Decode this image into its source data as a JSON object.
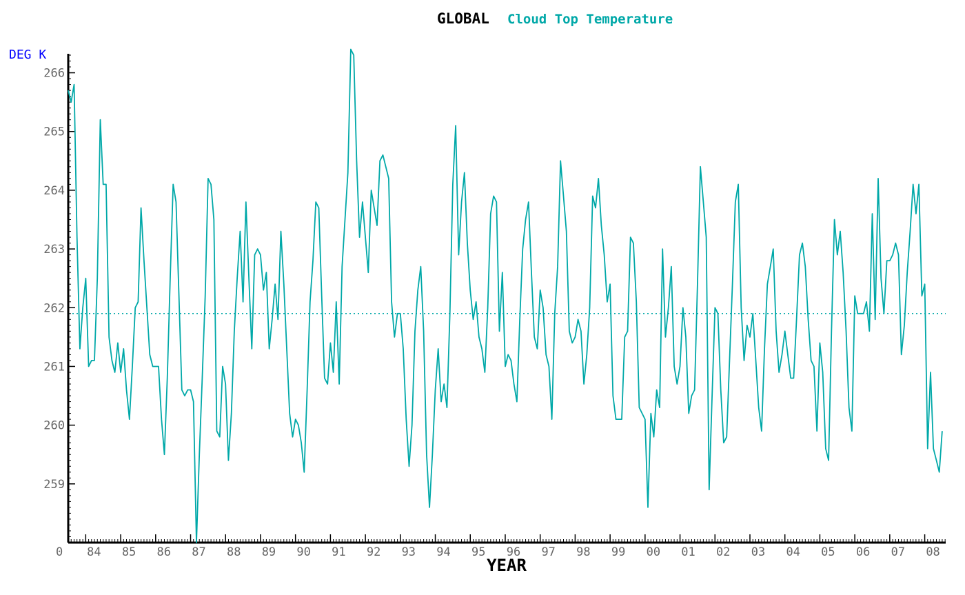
{
  "chart_data": {
    "type": "line",
    "title": "GLOBAL",
    "subtitle": "Cloud Top Temperature",
    "ylabel": "DEG K",
    "xlabel": "YEAR",
    "origin_label": "0",
    "ylim": [
      258.0,
      266.3
    ],
    "xlim": [
      1983.5,
      2008.6
    ],
    "grid": false,
    "y_ticks": [
      259,
      260,
      261,
      262,
      263,
      264,
      265,
      266
    ],
    "y_tick_labels": [
      "259",
      "260",
      "261",
      "262",
      "263",
      "264",
      "265",
      "266"
    ],
    "x_ticks": [
      1984,
      1985,
      1986,
      1987,
      1988,
      1989,
      1990,
      1991,
      1992,
      1993,
      1994,
      1995,
      1996,
      1997,
      1998,
      1999,
      2000,
      2001,
      2002,
      2003,
      2004,
      2005,
      2006,
      2007,
      2008
    ],
    "x_tick_labels": [
      "84",
      "85",
      "86",
      "87",
      "88",
      "89",
      "90",
      "91",
      "92",
      "93",
      "94",
      "95",
      "96",
      "97",
      "98",
      "99",
      "00",
      "01",
      "02",
      "03",
      "04",
      "05",
      "06",
      "07",
      "08"
    ],
    "reference_line": {
      "y": 261.9,
      "style": "dotted"
    },
    "series": [
      {
        "color": "#00a8a8",
        "x": [
          1983.5,
          1983.583,
          1983.667,
          1983.75,
          1983.833,
          1983.917,
          1984.0,
          1984.083,
          1984.167,
          1984.25,
          1984.333,
          1984.417,
          1984.5,
          1984.583,
          1984.667,
          1984.75,
          1984.833,
          1984.917,
          1985.0,
          1985.083,
          1985.167,
          1985.25,
          1985.333,
          1985.417,
          1985.5,
          1985.583,
          1985.667,
          1985.75,
          1985.833,
          1985.917,
          1986.0,
          1986.083,
          1986.167,
          1986.25,
          1986.333,
          1986.417,
          1986.5,
          1986.583,
          1986.667,
          1986.75,
          1986.833,
          1986.917,
          1987.0,
          1987.083,
          1987.167,
          1987.25,
          1987.333,
          1987.417,
          1987.5,
          1987.583,
          1987.667,
          1987.75,
          1987.833,
          1987.917,
          1988.0,
          1988.083,
          1988.167,
          1988.25,
          1988.333,
          1988.417,
          1988.5,
          1988.583,
          1988.667,
          1988.75,
          1988.833,
          1988.917,
          1989.0,
          1989.083,
          1989.167,
          1989.25,
          1989.333,
          1989.417,
          1989.5,
          1989.583,
          1989.667,
          1989.75,
          1989.833,
          1989.917,
          1990.0,
          1990.083,
          1990.167,
          1990.25,
          1990.333,
          1990.417,
          1990.5,
          1990.583,
          1990.667,
          1990.75,
          1990.833,
          1990.917,
          1991.0,
          1991.083,
          1991.167,
          1991.25,
          1991.333,
          1991.417,
          1991.5,
          1991.583,
          1991.667,
          1991.75,
          1991.833,
          1991.917,
          1992.0,
          1992.083,
          1992.167,
          1992.25,
          1992.333,
          1992.417,
          1992.5,
          1992.583,
          1992.667,
          1992.75,
          1992.833,
          1992.917,
          1993.0,
          1993.083,
          1993.167,
          1993.25,
          1993.333,
          1993.417,
          1993.5,
          1993.583,
          1993.667,
          1993.75,
          1993.833,
          1993.917,
          1994.0,
          1994.083,
          1994.167,
          1994.25,
          1994.333,
          1994.417,
          1994.5,
          1994.583,
          1994.667,
          1994.75,
          1994.833,
          1994.917,
          1995.0,
          1995.083,
          1995.167,
          1995.25,
          1995.333,
          1995.417,
          1995.5,
          1995.583,
          1995.667,
          1995.75,
          1995.833,
          1995.917,
          1996.0,
          1996.083,
          1996.167,
          1996.25,
          1996.333,
          1996.417,
          1996.5,
          1996.583,
          1996.667,
          1996.75,
          1996.833,
          1996.917,
          1997.0,
          1997.083,
          1997.167,
          1997.25,
          1997.333,
          1997.417,
          1997.5,
          1997.583,
          1997.667,
          1997.75,
          1997.833,
          1997.917,
          1998.0,
          1998.083,
          1998.167,
          1998.25,
          1998.333,
          1998.417,
          1998.5,
          1998.583,
          1998.667,
          1998.75,
          1998.833,
          1998.917,
          1999.0,
          1999.083,
          1999.167,
          1999.25,
          1999.333,
          1999.417,
          1999.5,
          1999.583,
          1999.667,
          1999.75,
          1999.833,
          1999.917,
          2000.0,
          2000.083,
          2000.167,
          2000.25,
          2000.333,
          2000.417,
          2000.5,
          2000.583,
          2000.667,
          2000.75,
          2000.833,
          2000.917,
          2001.0,
          2001.083,
          2001.167,
          2001.25,
          2001.333,
          2001.417,
          2001.5,
          2001.583,
          2001.667,
          2001.75,
          2001.833,
          2001.917,
          2002.0,
          2002.083,
          2002.167,
          2002.25,
          2002.333,
          2002.417,
          2002.5,
          2002.583,
          2002.667,
          2002.75,
          2002.833,
          2002.917,
          2003.0,
          2003.083,
          2003.167,
          2003.25,
          2003.333,
          2003.417,
          2003.5,
          2003.583,
          2003.667,
          2003.75,
          2003.833,
          2003.917,
          2004.0,
          2004.083,
          2004.167,
          2004.25,
          2004.333,
          2004.417,
          2004.5,
          2004.583,
          2004.667,
          2004.75,
          2004.833,
          2004.917,
          2005.0,
          2005.083,
          2005.167,
          2005.25,
          2005.333,
          2005.417,
          2005.5,
          2005.583,
          2005.667,
          2005.75,
          2005.833,
          2005.917,
          2006.0,
          2006.083,
          2006.167,
          2006.25,
          2006.333,
          2006.417,
          2006.5,
          2006.583,
          2006.667,
          2006.75,
          2006.833,
          2006.917,
          2007.0,
          2007.083,
          2007.167,
          2007.25,
          2007.333,
          2007.417,
          2007.5,
          2007.583,
          2007.667,
          2007.75,
          2007.833,
          2007.917,
          2008.0,
          2008.083,
          2008.167,
          2008.25,
          2008.333,
          2008.417,
          2008.5
        ],
        "values": [
          265.7,
          265.5,
          265.8,
          263.2,
          261.3,
          262.0,
          262.5,
          261.0,
          261.1,
          261.1,
          262.5,
          265.2,
          264.1,
          264.1,
          261.5,
          261.1,
          260.9,
          261.4,
          260.9,
          261.3,
          260.6,
          260.1,
          261.0,
          262.0,
          262.1,
          263.7,
          262.8,
          262.0,
          261.2,
          261.0,
          261.0,
          261.0,
          260.1,
          259.5,
          260.8,
          262.5,
          264.1,
          263.8,
          262.2,
          260.6,
          260.5,
          260.6,
          260.6,
          260.4,
          258.0,
          259.5,
          260.8,
          262.2,
          264.2,
          264.1,
          263.5,
          259.9,
          259.8,
          261.0,
          260.7,
          259.4,
          260.2,
          261.6,
          262.5,
          263.3,
          262.1,
          263.8,
          262.5,
          261.3,
          262.9,
          263.0,
          262.9,
          262.3,
          262.6,
          261.3,
          261.8,
          262.4,
          261.8,
          263.3,
          262.4,
          261.3,
          260.2,
          259.8,
          260.1,
          260.0,
          259.7,
          259.2,
          260.6,
          262.1,
          262.8,
          263.8,
          263.7,
          262.2,
          260.8,
          260.7,
          261.4,
          260.9,
          262.1,
          260.7,
          262.7,
          263.5,
          264.3,
          266.4,
          266.3,
          264.5,
          263.2,
          263.8,
          263.2,
          262.6,
          264.0,
          263.7,
          263.4,
          264.5,
          264.6,
          264.4,
          264.2,
          262.1,
          261.5,
          261.9,
          261.9,
          261.3,
          260.1,
          259.3,
          260.0,
          261.6,
          262.3,
          262.7,
          261.6,
          259.5,
          258.6,
          259.5,
          260.6,
          261.3,
          260.4,
          260.7,
          260.3,
          261.9,
          264.1,
          265.1,
          262.9,
          263.8,
          264.3,
          263.1,
          262.3,
          261.8,
          262.1,
          261.5,
          261.3,
          260.9,
          262.0,
          263.6,
          263.9,
          263.8,
          261.6,
          262.6,
          261.0,
          261.2,
          261.1,
          260.7,
          260.4,
          261.8,
          263.0,
          263.5,
          263.8,
          262.6,
          261.5,
          261.3,
          262.3,
          262.0,
          261.2,
          261.0,
          260.1,
          261.9,
          262.7,
          264.5,
          263.9,
          263.3,
          261.6,
          261.4,
          261.5,
          261.8,
          261.6,
          260.7,
          261.2,
          262.0,
          263.9,
          263.7,
          264.2,
          263.4,
          262.9,
          262.1,
          262.4,
          260.5,
          260.1,
          260.1,
          260.1,
          261.5,
          261.6,
          263.2,
          263.1,
          262.1,
          260.3,
          260.2,
          260.1,
          258.6,
          260.2,
          259.8,
          260.6,
          260.3,
          263.0,
          261.5,
          262.0,
          262.7,
          261.0,
          260.7,
          261.0,
          262.0,
          261.5,
          260.2,
          260.5,
          260.6,
          262.4,
          264.4,
          263.8,
          263.2,
          258.9,
          260.5,
          262.0,
          261.9,
          260.6,
          259.7,
          259.8,
          261.1,
          262.4,
          263.8,
          264.1,
          262.0,
          261.1,
          261.7,
          261.5,
          261.9,
          261.1,
          260.3,
          259.9,
          261.3,
          262.4,
          262.7,
          263.0,
          261.6,
          260.9,
          261.2,
          261.6,
          261.2,
          260.8,
          260.8,
          261.8,
          262.9,
          263.1,
          262.7,
          261.8,
          261.1,
          261.0,
          259.9,
          261.4,
          260.9,
          259.6,
          259.4,
          261.6,
          263.5,
          262.9,
          263.3,
          262.6,
          261.6,
          260.3,
          259.9,
          262.2,
          261.9,
          261.9,
          261.9,
          262.1,
          261.6,
          263.6,
          261.8,
          264.2,
          262.5,
          261.9,
          262.8,
          262.8,
          262.9,
          263.1,
          262.9,
          261.2,
          261.7,
          262.6,
          263.3,
          264.1,
          263.6,
          264.1,
          262.2,
          262.4,
          259.6,
          260.9,
          259.6,
          259.4,
          259.2,
          259.9
        ]
      }
    ]
  }
}
